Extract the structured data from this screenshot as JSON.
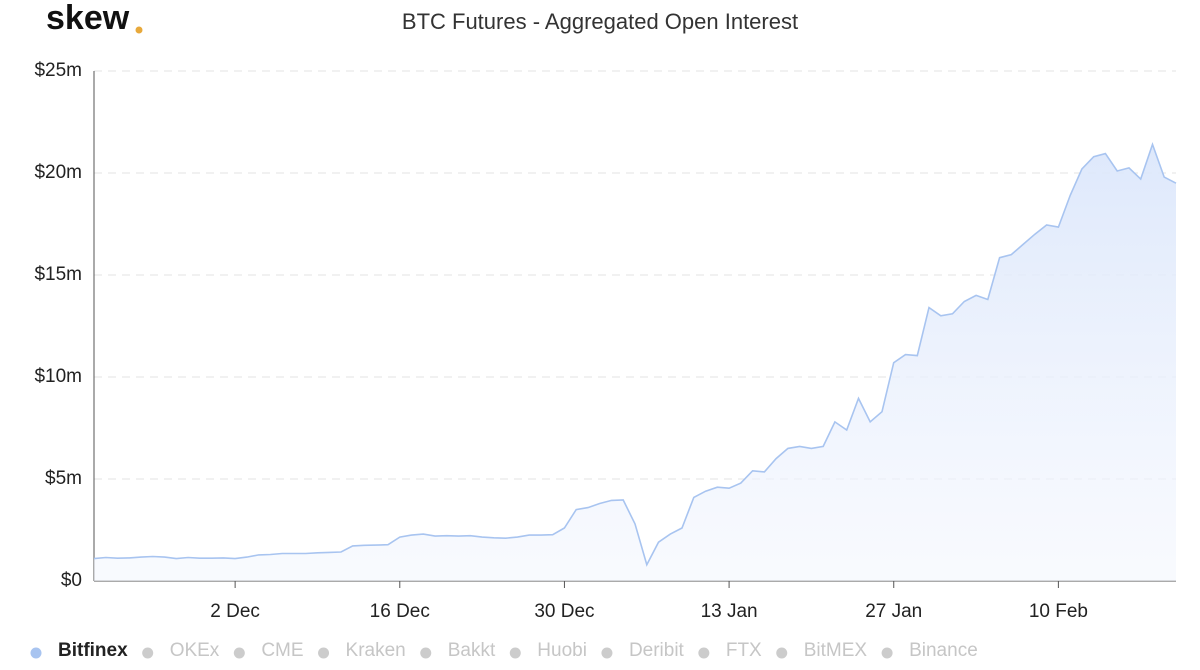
{
  "brand": "skew",
  "chart_data": {
    "type": "area",
    "title": "BTC Futures - Aggregated Open Interest",
    "x": [
      "20 Nov",
      "21 Nov",
      "22 Nov",
      "23 Nov",
      "24 Nov",
      "25 Nov",
      "26 Nov",
      "27 Nov",
      "28 Nov",
      "29 Nov",
      "30 Nov",
      "1 Dec",
      "2 Dec",
      "3 Dec",
      "4 Dec",
      "5 Dec",
      "6 Dec",
      "7 Dec",
      "8 Dec",
      "9 Dec",
      "10 Dec",
      "11 Dec",
      "12 Dec",
      "13 Dec",
      "14 Dec",
      "15 Dec",
      "16 Dec",
      "17 Dec",
      "18 Dec",
      "19 Dec",
      "20 Dec",
      "21 Dec",
      "22 Dec",
      "23 Dec",
      "24 Dec",
      "25 Dec",
      "26 Dec",
      "27 Dec",
      "28 Dec",
      "29 Dec",
      "30 Dec",
      "31 Dec",
      "1 Jan",
      "2 Jan",
      "3 Jan",
      "4 Jan",
      "5 Jan",
      "6 Jan",
      "7 Jan",
      "8 Jan",
      "9 Jan",
      "10 Jan",
      "11 Jan",
      "12 Jan",
      "13 Jan",
      "14 Jan",
      "15 Jan",
      "16 Jan",
      "17 Jan",
      "18 Jan",
      "19 Jan",
      "20 Jan",
      "21 Jan",
      "22 Jan",
      "23 Jan",
      "24 Jan",
      "25 Jan",
      "26 Jan",
      "27 Jan",
      "28 Jan",
      "29 Jan",
      "30 Jan",
      "31 Jan",
      "1 Feb",
      "2 Feb",
      "3 Feb",
      "4 Feb",
      "5 Feb",
      "6 Feb",
      "7 Feb",
      "8 Feb",
      "9 Feb",
      "10 Feb",
      "11 Feb",
      "12 Feb",
      "13 Feb",
      "14 Feb",
      "15 Feb",
      "16 Feb",
      "17 Feb",
      "18 Feb",
      "19 Feb",
      "20 Feb"
    ],
    "xticks": [
      "2 Dec",
      "16 Dec",
      "30 Dec",
      "13 Jan",
      "27 Jan",
      "10 Feb"
    ],
    "ylim": [
      0,
      25
    ],
    "yticks": [
      {
        "value": 0,
        "label": "$0"
      },
      {
        "value": 5,
        "label": "$5m"
      },
      {
        "value": 10,
        "label": "$10m"
      },
      {
        "value": 15,
        "label": "$15m"
      },
      {
        "value": 20,
        "label": "$20m"
      },
      {
        "value": 25,
        "label": "$25m"
      }
    ],
    "grid": true,
    "legend": "bottom-left",
    "series": [
      {
        "name": "Bitfinex",
        "color": "#a8c4f0",
        "visible": true,
        "values": [
          1.1,
          1.15,
          1.12,
          1.13,
          1.17,
          1.2,
          1.17,
          1.1,
          1.15,
          1.12,
          1.12,
          1.13,
          1.1,
          1.17,
          1.28,
          1.3,
          1.35,
          1.35,
          1.35,
          1.38,
          1.4,
          1.42,
          1.72,
          1.75,
          1.76,
          1.78,
          2.15,
          2.25,
          2.3,
          2.2,
          2.22,
          2.2,
          2.22,
          2.15,
          2.12,
          2.1,
          2.15,
          2.25,
          2.25,
          2.27,
          2.6,
          3.5,
          3.6,
          3.8,
          3.95,
          3.97,
          2.8,
          0.8,
          1.9,
          2.3,
          2.6,
          4.1,
          4.4,
          4.6,
          4.55,
          4.8,
          5.4,
          5.35,
          6.0,
          6.5,
          6.6,
          6.5,
          6.6,
          7.8,
          7.4,
          8.95,
          7.8,
          8.3,
          10.7,
          11.1,
          11.05,
          13.4,
          13.0,
          13.1,
          13.7,
          14.0,
          13.8,
          15.85,
          16.0,
          16.5,
          17.0,
          17.45,
          17.35,
          18.9,
          20.2,
          20.8,
          20.95,
          20.1,
          20.25,
          19.7,
          21.4,
          19.8,
          19.5
        ]
      },
      {
        "name": "OKEx",
        "color": "#cccccc",
        "visible": false
      },
      {
        "name": "CME",
        "color": "#cccccc",
        "visible": false
      },
      {
        "name": "Kraken",
        "color": "#cccccc",
        "visible": false
      },
      {
        "name": "Bakkt",
        "color": "#cccccc",
        "visible": false
      },
      {
        "name": "Huobi",
        "color": "#cccccc",
        "visible": false
      },
      {
        "name": "Deribit",
        "color": "#cccccc",
        "visible": false
      },
      {
        "name": "FTX",
        "color": "#cccccc",
        "visible": false
      },
      {
        "name": "BitMEX",
        "color": "#cccccc",
        "visible": false
      },
      {
        "name": "Binance",
        "color": "#cccccc",
        "visible": false
      }
    ]
  }
}
